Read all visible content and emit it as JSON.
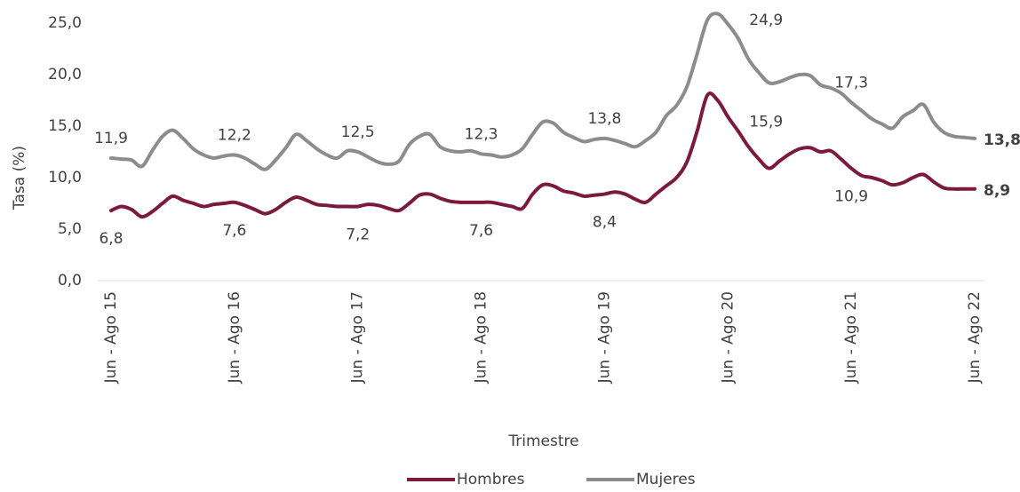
{
  "chart_data": {
    "type": "line",
    "x_label": "Trimestre",
    "y_label": "Tasa (%)",
    "categories": [
      "Jun - Ago 15",
      null,
      null,
      null,
      null,
      null,
      null,
      null,
      null,
      null,
      null,
      null,
      "Jun - Ago 16",
      null,
      null,
      null,
      null,
      null,
      null,
      null,
      null,
      null,
      null,
      null,
      "Jun - Ago 17",
      null,
      null,
      null,
      null,
      null,
      null,
      null,
      null,
      null,
      null,
      null,
      "Jun - Ago 18",
      null,
      null,
      null,
      null,
      null,
      null,
      null,
      null,
      null,
      null,
      null,
      "Jun - Ago 19",
      null,
      null,
      null,
      null,
      null,
      null,
      null,
      null,
      null,
      null,
      null,
      "Jun - Ago 20",
      null,
      null,
      null,
      null,
      null,
      null,
      null,
      null,
      null,
      null,
      null,
      "Jun - Ago 21",
      null,
      null,
      null,
      null,
      null,
      null,
      null,
      null,
      null,
      null,
      null,
      "Jun - Ago 22"
    ],
    "series": [
      {
        "name": "Hombres",
        "color": "#7b1a3e",
        "values": [
          6.8,
          7.2,
          6.9,
          6.2,
          6.7,
          7.5,
          8.2,
          7.8,
          7.5,
          7.2,
          7.4,
          7.5,
          7.6,
          7.3,
          6.9,
          6.5,
          6.9,
          7.6,
          8.1,
          7.8,
          7.4,
          7.3,
          7.2,
          7.2,
          7.2,
          7.4,
          7.3,
          7.0,
          6.8,
          7.5,
          8.3,
          8.4,
          8.0,
          7.7,
          7.6,
          7.6,
          7.6,
          7.6,
          7.4,
          7.2,
          7.0,
          8.4,
          9.3,
          9.2,
          8.7,
          8.5,
          8.2,
          8.3,
          8.4,
          8.6,
          8.4,
          7.9,
          7.6,
          8.4,
          9.2,
          10.0,
          11.5,
          14.5,
          18.0,
          17.5,
          15.9,
          14.5,
          13.0,
          11.8,
          10.9,
          11.6,
          12.3,
          12.8,
          12.9,
          12.5,
          12.6,
          11.8,
          10.9,
          10.2,
          10.0,
          9.7,
          9.3,
          9.5,
          10.0,
          10.3,
          9.6,
          9.0,
          8.9,
          8.9,
          8.9
        ],
        "value_labels": [
          "6,8",
          null,
          null,
          null,
          null,
          null,
          null,
          null,
          null,
          null,
          null,
          null,
          "7,6",
          null,
          null,
          null,
          null,
          null,
          null,
          null,
          null,
          null,
          null,
          null,
          "7,2",
          null,
          null,
          null,
          null,
          null,
          null,
          null,
          null,
          null,
          null,
          null,
          "7,6",
          null,
          null,
          null,
          null,
          null,
          null,
          null,
          null,
          null,
          null,
          null,
          "8,4",
          null,
          null,
          null,
          null,
          null,
          null,
          null,
          null,
          null,
          null,
          null,
          "15,9",
          null,
          null,
          null,
          null,
          null,
          null,
          null,
          null,
          null,
          null,
          null,
          "10,9",
          null,
          null,
          null,
          null,
          null,
          null,
          null,
          null,
          null,
          null,
          null,
          "8,9"
        ]
      },
      {
        "name": "Mujeres",
        "color": "#8c8c8c",
        "values": [
          11.9,
          11.8,
          11.7,
          11.1,
          12.6,
          14.0,
          14.6,
          13.8,
          12.8,
          12.2,
          11.9,
          12.1,
          12.2,
          11.9,
          11.3,
          10.8,
          11.7,
          12.9,
          14.2,
          13.6,
          12.8,
          12.2,
          11.9,
          12.6,
          12.5,
          12.0,
          11.5,
          11.3,
          11.6,
          13.2,
          14.0,
          14.2,
          13.0,
          12.6,
          12.5,
          12.6,
          12.3,
          12.2,
          12.0,
          12.2,
          12.8,
          14.2,
          15.4,
          15.3,
          14.4,
          13.9,
          13.5,
          13.7,
          13.8,
          13.6,
          13.3,
          13.0,
          13.6,
          14.4,
          16.0,
          17.0,
          18.8,
          22.0,
          25.3,
          25.9,
          24.9,
          23.5,
          21.5,
          20.2,
          19.2,
          19.3,
          19.7,
          20.0,
          19.9,
          19.0,
          18.7,
          18.2,
          17.3,
          16.5,
          15.7,
          15.2,
          14.8,
          15.9,
          16.5,
          17.1,
          15.4,
          14.4,
          14.0,
          13.9,
          13.8
        ],
        "value_labels": [
          "11,9",
          null,
          null,
          null,
          null,
          null,
          null,
          null,
          null,
          null,
          null,
          null,
          "12,2",
          null,
          null,
          null,
          null,
          null,
          null,
          null,
          null,
          null,
          null,
          null,
          "12,5",
          null,
          null,
          null,
          null,
          null,
          null,
          null,
          null,
          null,
          null,
          null,
          "12,3",
          null,
          null,
          null,
          null,
          null,
          null,
          null,
          null,
          null,
          null,
          null,
          "13,8",
          null,
          null,
          null,
          null,
          null,
          null,
          null,
          null,
          null,
          null,
          null,
          "24,9",
          null,
          null,
          null,
          null,
          null,
          null,
          null,
          null,
          null,
          null,
          null,
          "17,3",
          null,
          null,
          null,
          null,
          null,
          null,
          null,
          null,
          null,
          null,
          null,
          "13,8"
        ]
      }
    ],
    "ylim": [
      0,
      25
    ],
    "yticks": [
      {
        "value": 0,
        "label": "0,0"
      },
      {
        "value": 5,
        "label": "5,0"
      },
      {
        "value": 10,
        "label": "10,0"
      },
      {
        "value": 15,
        "label": "15,0"
      },
      {
        "value": 20,
        "label": "20,0"
      },
      {
        "value": 25,
        "label": "25,0"
      }
    ],
    "legend": "bottom"
  }
}
